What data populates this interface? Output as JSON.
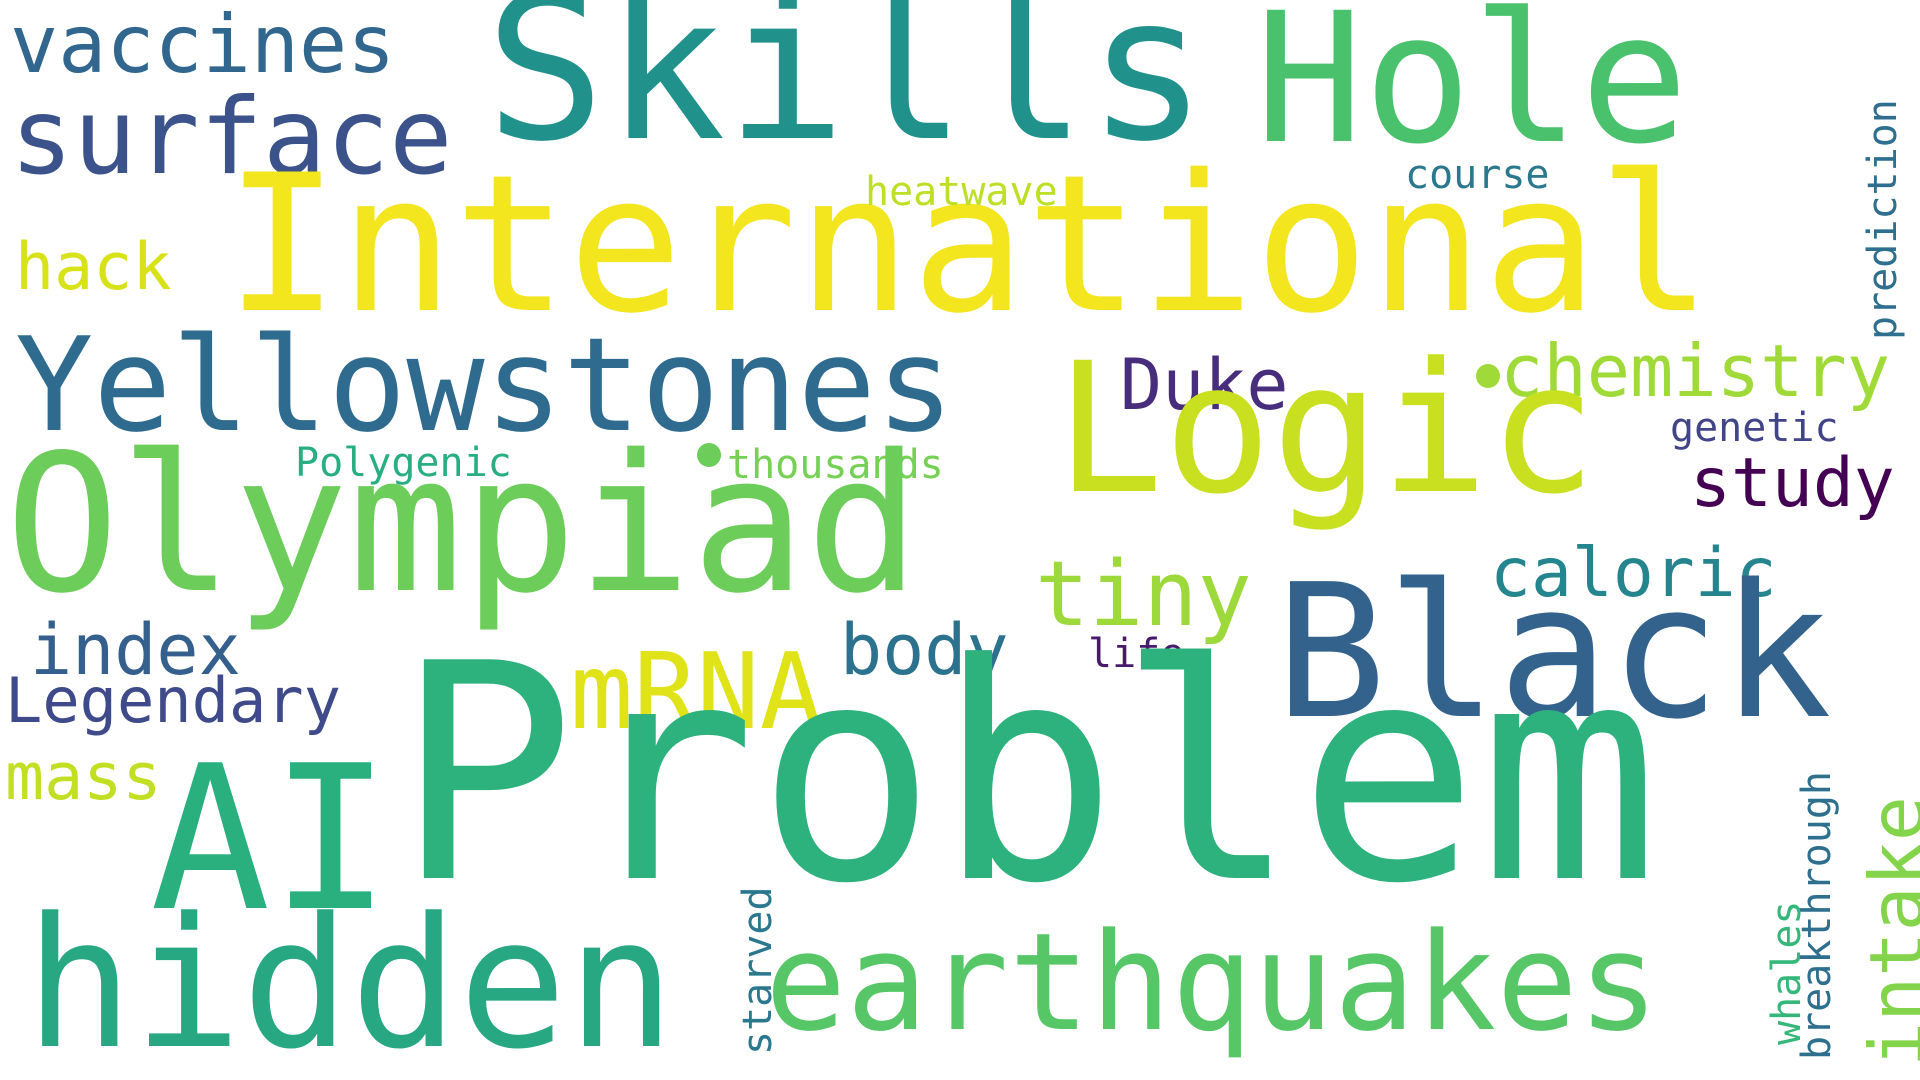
{
  "words": {
    "problem": {
      "text": "Problem",
      "color": "#2db27d"
    },
    "international": {
      "text": "International",
      "color": "#f3e51e"
    },
    "skills": {
      "text": "Skills",
      "color": "#21918c"
    },
    "hole": {
      "text": "Hole",
      "color": "#4ac16d"
    },
    "olympiad": {
      "text": "Olympiad",
      "color": "#6ccd5a"
    },
    "logic": {
      "text": "Logic",
      "color": "#c8e020"
    },
    "black": {
      "text": "Black",
      "color": "#33638d"
    },
    "yellowstones": {
      "text": "Yellowstones",
      "color": "#2f6b8e"
    },
    "hidden": {
      "text": "hidden",
      "color": "#27a882"
    },
    "ai": {
      "text": "AI",
      "color": "#2aaf7f"
    },
    "earthquakes": {
      "text": "earthquakes",
      "color": "#56c667"
    },
    "surface": {
      "text": "surface",
      "color": "#3b528b"
    },
    "vaccines": {
      "text": "vaccines",
      "color": "#31668e"
    },
    "mrna": {
      "text": "mRNA",
      "color": "#e0e318"
    },
    "tiny": {
      "text": "tiny",
      "color": "#9dd93b"
    },
    "chemistry": {
      "text": "chemistry",
      "color": "#a0da39"
    },
    "caloric": {
      "text": "caloric",
      "color": "#25858e"
    },
    "study": {
      "text": "study",
      "color": "#440154"
    },
    "duke": {
      "text": "Duke",
      "color": "#472d7b"
    },
    "body": {
      "text": "body",
      "color": "#2c728e"
    },
    "index": {
      "text": "index",
      "color": "#355f8d"
    },
    "legendary": {
      "text": "Legendary",
      "color": "#3e4a89"
    },
    "hack": {
      "text": "hack",
      "color": "#d8e219"
    },
    "mass": {
      "text": "mass",
      "color": "#c2df23"
    },
    "heatwave": {
      "text": "heatwave",
      "color": "#bddf26"
    },
    "course": {
      "text": "course",
      "color": "#2a788e"
    },
    "genetic": {
      "text": "genetic",
      "color": "#414487"
    },
    "polygenic": {
      "text": "Polygenic",
      "color": "#28ae80"
    },
    "thousands": {
      "text": "thousands",
      "color": "#75d054"
    },
    "life": {
      "text": "life",
      "color": "#481a6c"
    },
    "intake": {
      "text": "intake",
      "color": "#84d44b"
    },
    "prediction": {
      "text": "prediction",
      "color": "#2e6e8e"
    },
    "breakthrough": {
      "text": "breakthrough",
      "color": "#2e6f8e"
    },
    "whales": {
      "text": "whales",
      "color": "#35b779"
    },
    "starved": {
      "text": "starved",
      "color": "#2a778e"
    }
  },
  "dot_color_1": "#6ccd5a",
  "dot_color_2": "#a0da39"
}
